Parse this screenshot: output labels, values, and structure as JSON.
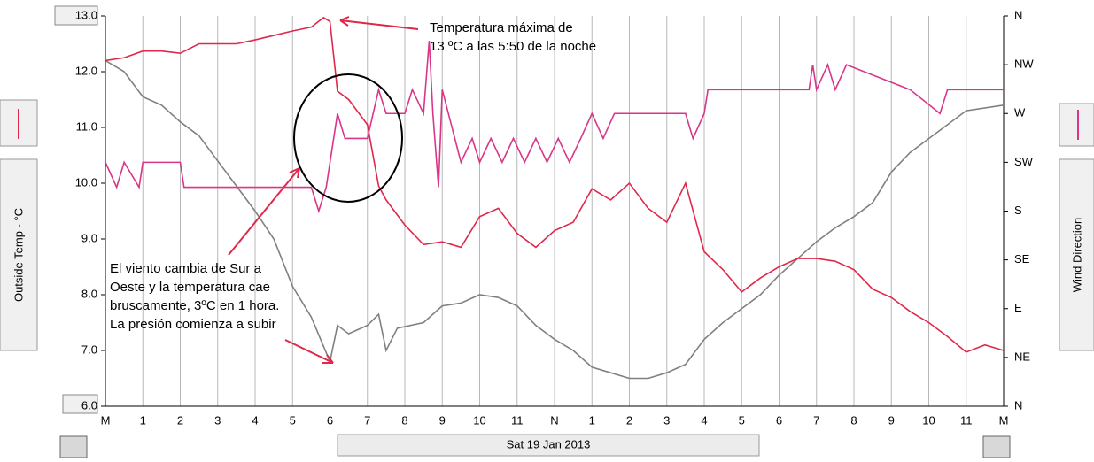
{
  "chart_data": {
    "type": "line",
    "y_label": "Outside Temp - °C",
    "y2_label": "Wind Direction",
    "x_label": "Sat 19 Jan 2013",
    "xlim": [
      0,
      24
    ],
    "xticks": [
      {
        "value": 0,
        "label": "M"
      },
      1,
      2,
      3,
      4,
      5,
      6,
      7,
      8,
      9,
      10,
      11,
      {
        "value": 12,
        "label": "N"
      },
      {
        "value": 13,
        "label": "1"
      },
      {
        "value": 14,
        "label": "2"
      },
      {
        "value": 15,
        "label": "3"
      },
      {
        "value": 16,
        "label": "4"
      },
      {
        "value": 17,
        "label": "5"
      },
      {
        "value": 18,
        "label": "6"
      },
      {
        "value": 19,
        "label": "7"
      },
      {
        "value": 20,
        "label": "8"
      },
      {
        "value": 21,
        "label": "9"
      },
      {
        "value": 22,
        "label": "10"
      },
      {
        "value": 23,
        "label": "11"
      },
      {
        "value": 24,
        "label": "M"
      }
    ],
    "ylim": [
      6,
      13
    ],
    "yticks": [
      {
        "value": 6,
        "label": "6.0"
      },
      {
        "value": 7,
        "label": "7.0"
      },
      {
        "value": 8,
        "label": "8.0"
      },
      {
        "value": 9,
        "label": "9.0"
      },
      {
        "value": 10,
        "label": "10.0"
      },
      {
        "value": 11,
        "label": "11.0"
      },
      {
        "value": 12,
        "label": "12.0"
      },
      {
        "value": 13,
        "label": "13.0"
      }
    ],
    "y2lim": [
      0,
      360
    ],
    "y2ticks": [
      {
        "value": 0,
        "label": "N"
      },
      {
        "value": 45,
        "label": "NE"
      },
      {
        "value": 90,
        "label": "E"
      },
      {
        "value": 135,
        "label": "SE"
      },
      {
        "value": 180,
        "label": "S"
      },
      {
        "value": 225,
        "label": "SW"
      },
      {
        "value": 270,
        "label": "W"
      },
      {
        "value": 315,
        "label": "NW"
      },
      {
        "value": 360,
        "label": "N"
      }
    ],
    "grid": true,
    "series": [
      {
        "color": "#808080",
        "x": [
          0,
          0.5,
          1,
          1.5,
          2,
          2.5,
          3,
          3.5,
          4,
          4.5,
          5,
          5.5,
          6,
          6.2,
          6.5,
          7,
          7.3,
          7.5,
          7.8,
          8.5,
          9,
          9.5,
          10,
          10.5,
          11,
          11.5,
          12,
          12.5,
          13,
          13.5,
          14,
          14.5,
          15,
          15.5,
          16,
          16.5,
          17,
          17.5,
          18,
          18.5,
          19,
          19.5,
          20,
          20.5,
          21,
          21.5,
          22,
          22.5,
          23,
          24
        ],
        "values": [
          12.2,
          12.0,
          11.55,
          11.4,
          11.1,
          10.85,
          10.4,
          9.95,
          9.5,
          9.0,
          8.15,
          7.6,
          6.8,
          7.45,
          7.3,
          7.45,
          7.65,
          7.0,
          7.4,
          7.5,
          7.8,
          7.85,
          8.0,
          7.95,
          7.8,
          7.45,
          7.2,
          7.0,
          6.7,
          6.6,
          6.5,
          6.5,
          6.6,
          6.75,
          7.2,
          7.5,
          7.75,
          8.0,
          8.35,
          8.65,
          8.95,
          9.2,
          9.4,
          9.65,
          10.2,
          10.55,
          10.8,
          11.05,
          11.3,
          11.4
        ]
      },
      {
        "color": "#e0284a",
        "x": [
          0,
          0.5,
          1,
          1.5,
          2,
          2.5,
          3,
          3.5,
          4,
          4.5,
          5,
          5.5,
          5.83,
          6,
          6.2,
          6.5,
          7,
          7.3,
          7.5,
          8,
          8.5,
          9,
          9.5,
          10,
          10.5,
          11,
          11.5,
          12,
          12.5,
          13,
          13.5,
          14,
          14.5,
          15,
          15.5,
          16,
          16.5,
          17,
          17.5,
          18,
          18.5,
          19,
          19.5,
          20,
          20.5,
          21,
          21.5,
          22,
          22.5,
          23,
          23.5,
          24
        ],
        "values": [
          12.2,
          12.25,
          12.37,
          12.37,
          12.33,
          12.5,
          12.5,
          12.5,
          12.57,
          12.65,
          12.73,
          12.8,
          12.97,
          12.9,
          11.65,
          11.5,
          11.05,
          9.95,
          9.7,
          9.25,
          8.9,
          8.95,
          8.85,
          9.4,
          9.55,
          9.1,
          8.85,
          9.15,
          9.3,
          9.9,
          9.7,
          10.0,
          9.55,
          9.3,
          10.0,
          8.77,
          8.45,
          8.05,
          8.3,
          8.5,
          8.65,
          8.65,
          8.6,
          8.45,
          8.1,
          7.95,
          7.7,
          7.5,
          7.25,
          6.97,
          7.1,
          7.0
        ]
      },
      {
        "color": "#d9368a",
        "axis": "y2",
        "x": [
          0,
          0.3,
          0.5,
          0.9,
          1,
          2,
          2.1,
          5.5,
          5.7,
          5.9,
          6.2,
          6.4,
          7,
          7.3,
          7.5,
          8,
          8.2,
          8.5,
          8.65,
          8.75,
          8.9,
          9,
          9.5,
          9.8,
          10,
          10.3,
          10.6,
          10.9,
          11.2,
          11.5,
          11.8,
          12.1,
          12.4,
          12.7,
          13,
          13.3,
          13.6,
          15.5,
          15.7,
          16,
          16.1,
          18.8,
          18.9,
          19,
          19.3,
          19.5,
          19.8,
          21.5,
          22.3,
          22.5,
          24
        ],
        "values": [
          225,
          202,
          225,
          202,
          225,
          225,
          202,
          202,
          180,
          202,
          270,
          247,
          247,
          292,
          270,
          270,
          292,
          270,
          337,
          270,
          202,
          292,
          225,
          247,
          225,
          247,
          225,
          247,
          225,
          247,
          225,
          247,
          225,
          247,
          270,
          247,
          270,
          270,
          247,
          270,
          292,
          292,
          315,
          292,
          315,
          292,
          315,
          292,
          270,
          292,
          292
        ]
      }
    ],
    "annotations": [
      [
        "Temperatura máxima de",
        "13 ºC a las 5:50 de la noche"
      ],
      [
        "El viento cambia de Sur a",
        "Oeste y la temperatura cae",
        "bruscamente, 3ºC en 1 hora.",
        "La presión comienza a subir"
      ]
    ]
  }
}
